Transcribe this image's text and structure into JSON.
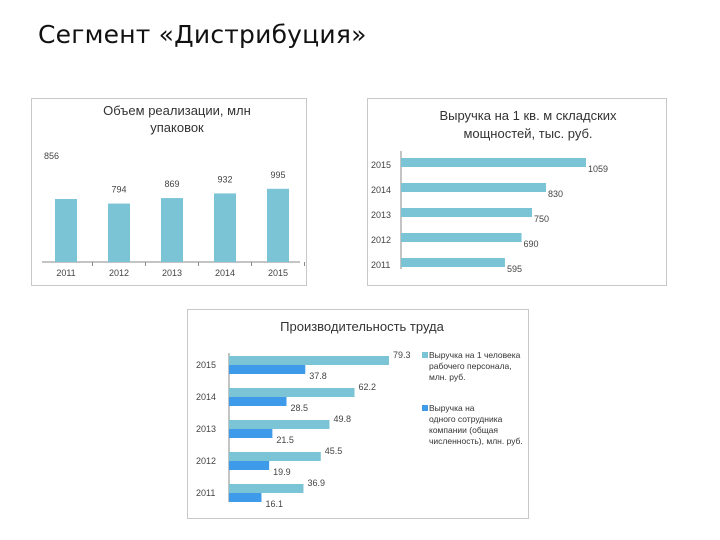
{
  "slide": {
    "title": "Сегмент «Дистрибуция»"
  },
  "colors": {
    "bar": "#7bc4d6",
    "bar_dark": "#3d9be9",
    "axis": "#8a8a8a"
  },
  "chart_data": [
    {
      "type": "bar",
      "title_lines": [
        "Объем реализации, млн",
        "упаковок"
      ],
      "categories": [
        "2011",
        "2012",
        "2013",
        "2014",
        "2015"
      ],
      "values": [
        856,
        794,
        869,
        932,
        995
      ],
      "value_labels": [
        "856",
        "794",
        "869",
        "932",
        "995"
      ]
    },
    {
      "type": "bar",
      "orientation": "horizontal",
      "title_lines": [
        "Выручка на 1 кв. м складских",
        "мощностей, тыс. руб."
      ],
      "categories": [
        "2015",
        "2014",
        "2013",
        "2012",
        "2011"
      ],
      "values": [
        1059,
        830,
        750,
        690,
        595
      ],
      "value_labels": [
        "1059",
        "830",
        "750",
        "690",
        "595"
      ]
    },
    {
      "type": "bar",
      "orientation": "horizontal",
      "title": "Производительность труда",
      "categories": [
        "2015",
        "2014",
        "2013",
        "2012",
        "2011"
      ],
      "series": [
        {
          "name": "Выручка на 1 человека рабочего персонала, млн. руб.",
          "legend_lines": [
            "Выручка на 1 человека",
            "рабочего персонала,",
            "млн. руб."
          ],
          "values": [
            79.3,
            62.2,
            49.8,
            45.5,
            36.9
          ],
          "value_labels": [
            "79.3",
            "62.2",
            "49.8",
            "45.5",
            "36.9"
          ]
        },
        {
          "name": "Выручка на одного сотрудника компании (общая численность), млн. руб.",
          "legend_lines": [
            "Выручка на",
            "одного сотрудника",
            "компании (общая",
            "численность), млн. руб."
          ],
          "values": [
            37.8,
            28.5,
            21.5,
            19.9,
            16.1
          ],
          "value_labels": [
            "37.8",
            "28.5",
            "21.5",
            "19.9",
            "16.1"
          ]
        }
      ]
    }
  ]
}
